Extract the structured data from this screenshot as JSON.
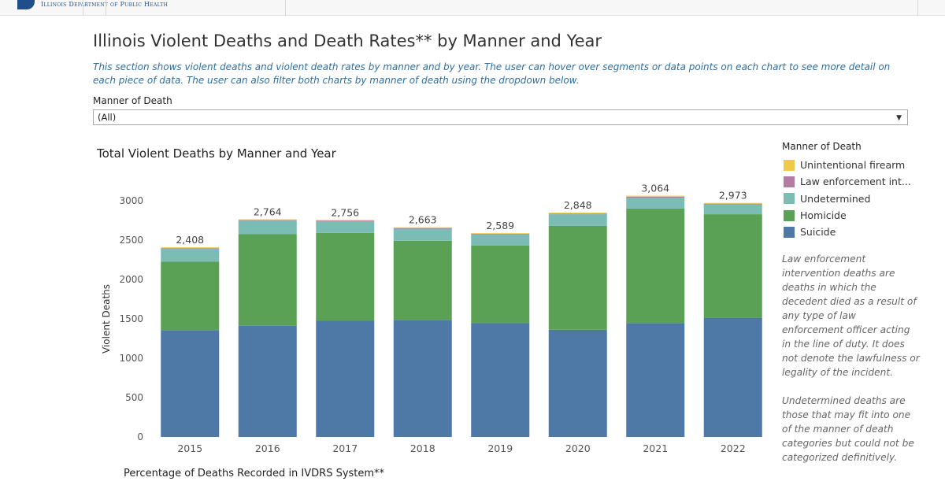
{
  "header": {
    "agency": "Illinois Department of Public Health"
  },
  "page": {
    "title": "Illinois Violent Deaths and Death Rates** by Manner and Year",
    "description": "This section shows violent deaths and violent death rates by manner and by year. The user can hover over segments or data points on each chart to see more detail on each piece of data. The user can also filter both charts by manner of death using the dropdown below."
  },
  "filter": {
    "label": "Manner of Death",
    "selected": "(All)"
  },
  "legend": {
    "title": "Manner of Death",
    "items": [
      {
        "label": "Unintentional firearm",
        "color": "#f1c84a"
      },
      {
        "label": "Law enforcement int...",
        "color": "#b57ca3"
      },
      {
        "label": "Undetermined",
        "color": "#7bbcb5"
      },
      {
        "label": "Homicide",
        "color": "#5aa155"
      },
      {
        "label": "Suicide",
        "color": "#4e79a7"
      }
    ]
  },
  "notes": {
    "law_enforcement": "Law enforcement intervention deaths are deaths in which the decedent died as a result of any type of law enforcement officer acting in the line of duty.  It does not denote the lawfulness or legality of the incident.",
    "undetermined": "Undetermined deaths are those that may fit into one of the manner of death categories but could not be categorized definitively."
  },
  "next_section": {
    "title": "Percentage of Deaths Recorded in IVDRS System**"
  },
  "chart_data": {
    "type": "bar",
    "stacked": true,
    "title": "Total Violent Deaths by Manner and Year",
    "xlabel": "",
    "ylabel": "Violent Deaths",
    "ylim": [
      0,
      3300
    ],
    "yticks": [
      0,
      500,
      1000,
      1500,
      2000,
      2500,
      3000
    ],
    "grid": false,
    "legend_position": "right",
    "categories": [
      "2015",
      "2016",
      "2017",
      "2018",
      "2019",
      "2020",
      "2021",
      "2022"
    ],
    "totals": [
      2408,
      2764,
      2756,
      2663,
      2589,
      2848,
      3064,
      2973
    ],
    "total_labels": [
      "2,408",
      "2,764",
      "2,756",
      "2,663",
      "2,589",
      "2,848",
      "3,064",
      "2,973"
    ],
    "series": [
      {
        "name": "Suicide",
        "color": "#4e79a7",
        "values": [
          1357,
          1411,
          1475,
          1487,
          1446,
          1362,
          1447,
          1514
        ]
      },
      {
        "name": "Homicide",
        "color": "#5aa155",
        "values": [
          868,
          1164,
          1117,
          1004,
          987,
          1319,
          1454,
          1315
        ]
      },
      {
        "name": "Undetermined",
        "color": "#7bbcb5",
        "values": [
          164,
          171,
          144,
          154,
          140,
          147,
          138,
          123
        ]
      },
      {
        "name": "Law enforcement int...",
        "color": "#b57ca3",
        "values": [
          9,
          8,
          12,
          8,
          8,
          10,
          13,
          11
        ]
      },
      {
        "name": "Unintentional firearm",
        "color": "#f1c84a",
        "values": [
          10,
          10,
          8,
          10,
          8,
          10,
          12,
          10
        ]
      }
    ]
  }
}
